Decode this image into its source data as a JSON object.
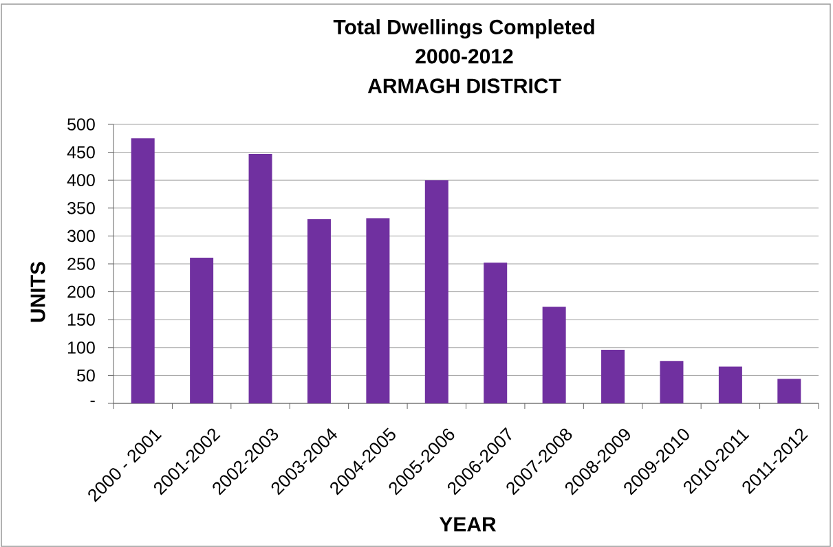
{
  "chart_data": {
    "type": "bar",
    "title": "Total Dwellings Completed 2000-2012",
    "subtitle": "ARMAGH DISTRICT",
    "xlabel": "YEAR",
    "ylabel": "UNITS",
    "categories": [
      "2000 - 2001",
      "2001-2002",
      "2002-2003",
      "2003-2004",
      "2004-2005",
      "2005-2006",
      "2006-2007",
      "2007-2008",
      "2008-2009",
      "2009-2010",
      "2010-2011",
      "2011-2012"
    ],
    "values": [
      475,
      261,
      447,
      330,
      332,
      400,
      252,
      173,
      96,
      76,
      66,
      44
    ],
    "color": "#7030a0",
    "ylim": [
      0,
      500
    ],
    "yticks": [
      {
        "value": 0,
        "label": "-"
      },
      50,
      100,
      150,
      200,
      250,
      300,
      350,
      400,
      450,
      500
    ],
    "grid": "y"
  }
}
